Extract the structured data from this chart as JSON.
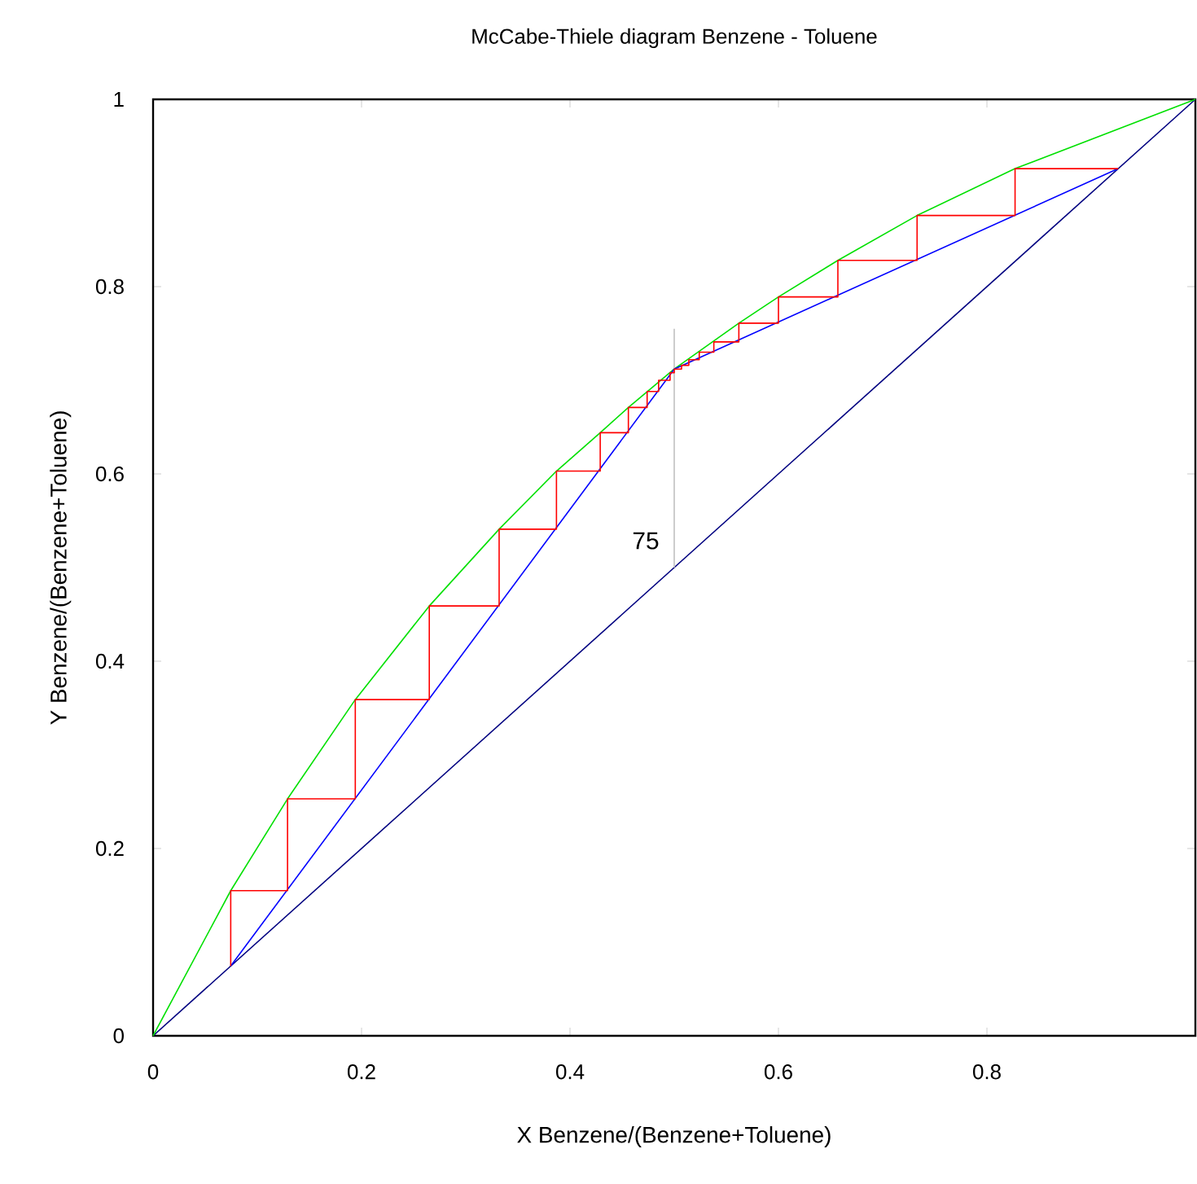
{
  "chart_data": {
    "type": "line",
    "title": "McCabe-Thiele diagram Benzene - Toluene",
    "xlabel": "X Benzene/(Benzene+Toluene)",
    "ylabel": "Y Benzene/(Benzene+Toluene)",
    "xlim": [
      0,
      1
    ],
    "ylim": [
      0,
      1
    ],
    "xticks": [
      0,
      0.2,
      0.4,
      0.6,
      0.8
    ],
    "yticks": [
      0,
      0.2,
      0.4,
      0.6,
      0.8,
      1
    ],
    "series": [
      {
        "color": "#000080",
        "x": [
          0,
          1
        ],
        "values": [
          0,
          1
        ]
      },
      {
        "color": "#00e000",
        "x": [
          0,
          0.0745,
          0.129,
          0.194,
          0.265,
          0.332,
          0.387,
          0.429,
          0.456,
          0.5,
          0.562,
          0.6,
          0.657,
          0.733,
          0.827,
          1
        ],
        "values": [
          0,
          0.155,
          0.253,
          0.359,
          0.459,
          0.541,
          0.603,
          0.644,
          0.671,
          0.712,
          0.761,
          0.789,
          0.828,
          0.876,
          0.926,
          1
        ]
      },
      {
        "color": "#c0c0c0",
        "x": [
          0.5,
          0.5
        ],
        "values": [
          0.5,
          0.755
        ]
      },
      {
        "color": "#0000ff",
        "x": [
          0.0745,
          0.5,
          0.926
        ],
        "values": [
          0.0745,
          0.712,
          0.926
        ]
      },
      {
        "color": "#ff0000",
        "x": [
          0.926,
          0.827,
          0.827,
          0.733,
          0.733,
          0.657,
          0.657,
          0.6,
          0.6,
          0.562,
          0.562,
          0.538,
          0.538,
          0.524,
          0.524,
          0.514,
          0.514,
          0.507,
          0.507,
          0.5,
          0.5,
          0.496,
          0.496,
          0.485,
          0.485,
          0.474,
          0.474,
          0.456,
          0.456,
          0.429,
          0.429,
          0.387,
          0.387,
          0.332,
          0.332,
          0.265,
          0.265,
          0.194,
          0.194,
          0.129,
          0.129,
          0.0745,
          0.0745
        ],
        "values": [
          0.926,
          0.926,
          0.876,
          0.876,
          0.828,
          0.828,
          0.789,
          0.789,
          0.761,
          0.761,
          0.741,
          0.741,
          0.73,
          0.73,
          0.722,
          0.722,
          0.716,
          0.716,
          0.712,
          0.712,
          0.708,
          0.708,
          0.7,
          0.7,
          0.688,
          0.688,
          0.671,
          0.671,
          0.644,
          0.644,
          0.603,
          0.603,
          0.541,
          0.541,
          0.459,
          0.459,
          0.359,
          0.359,
          0.253,
          0.253,
          0.155,
          0.155,
          0.0745
        ]
      }
    ],
    "annotations": [
      {
        "text": "75",
        "x": 0.5,
        "y": 0.5
      }
    ]
  }
}
